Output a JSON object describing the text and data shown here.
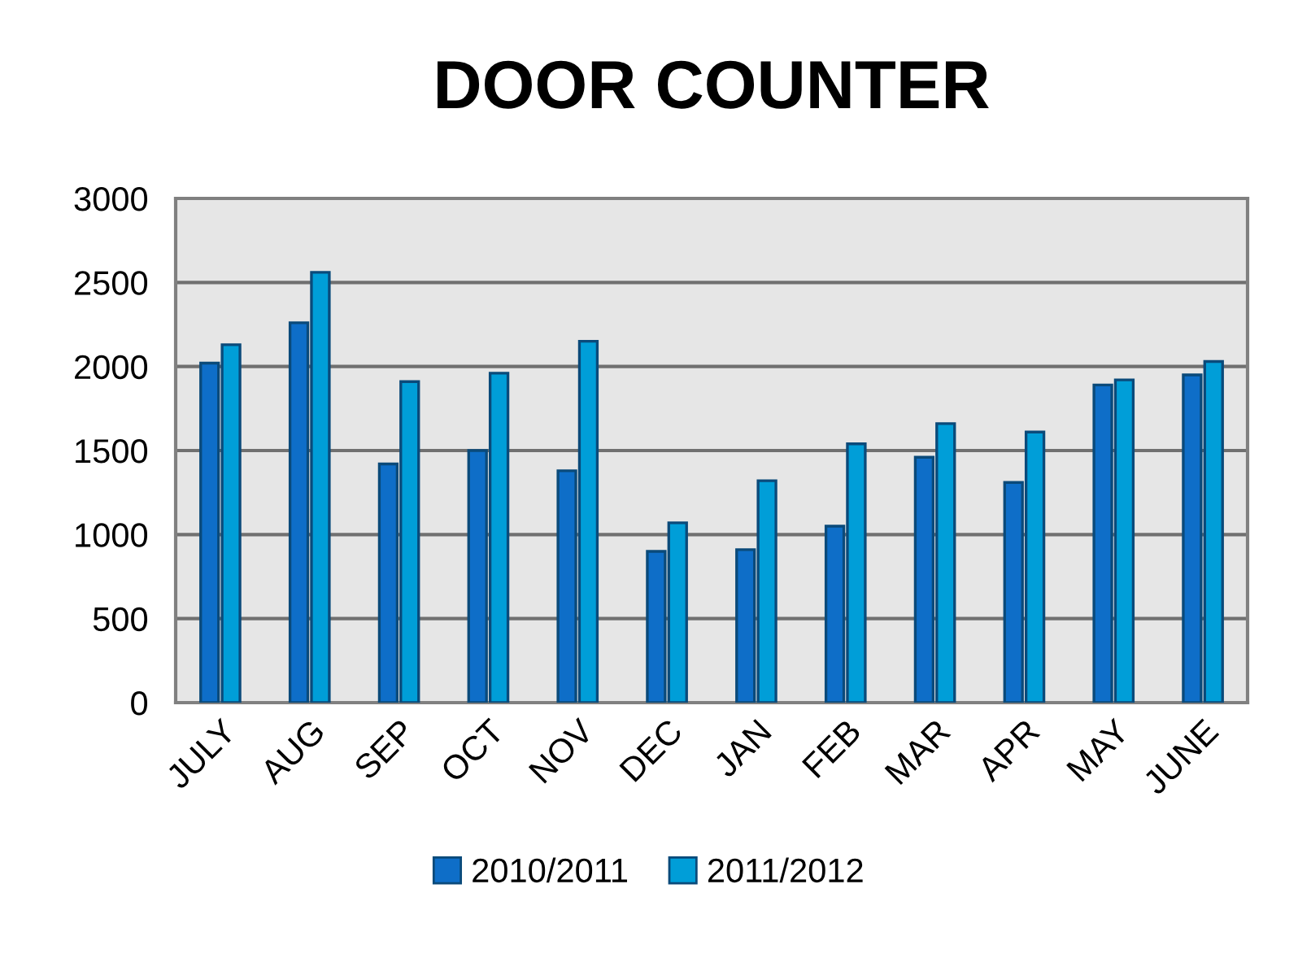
{
  "chart_data": {
    "type": "bar",
    "title": "DOOR COUNTER",
    "categories": [
      "JULY",
      "AUG",
      "SEP",
      "OCT",
      "NOV",
      "DEC",
      "JAN",
      "FEB",
      "MAR",
      "APR",
      "MAY",
      "JUNE"
    ],
    "series": [
      {
        "name": "2010/2011",
        "color": "#0e6ec8",
        "values": [
          2020,
          2260,
          1420,
          1500,
          1380,
          900,
          910,
          1050,
          1460,
          1310,
          1890,
          1950
        ]
      },
      {
        "name": "2011/2012",
        "color": "#009ed8",
        "values": [
          2130,
          2560,
          1910,
          1960,
          2150,
          1070,
          1320,
          1540,
          1660,
          1610,
          1920,
          2030
        ]
      }
    ],
    "ylim": [
      0,
      3000
    ],
    "yticks": [
      0,
      500,
      1000,
      1500,
      2000,
      2500,
      3000
    ],
    "grid": "y",
    "legend": "bottom"
  }
}
